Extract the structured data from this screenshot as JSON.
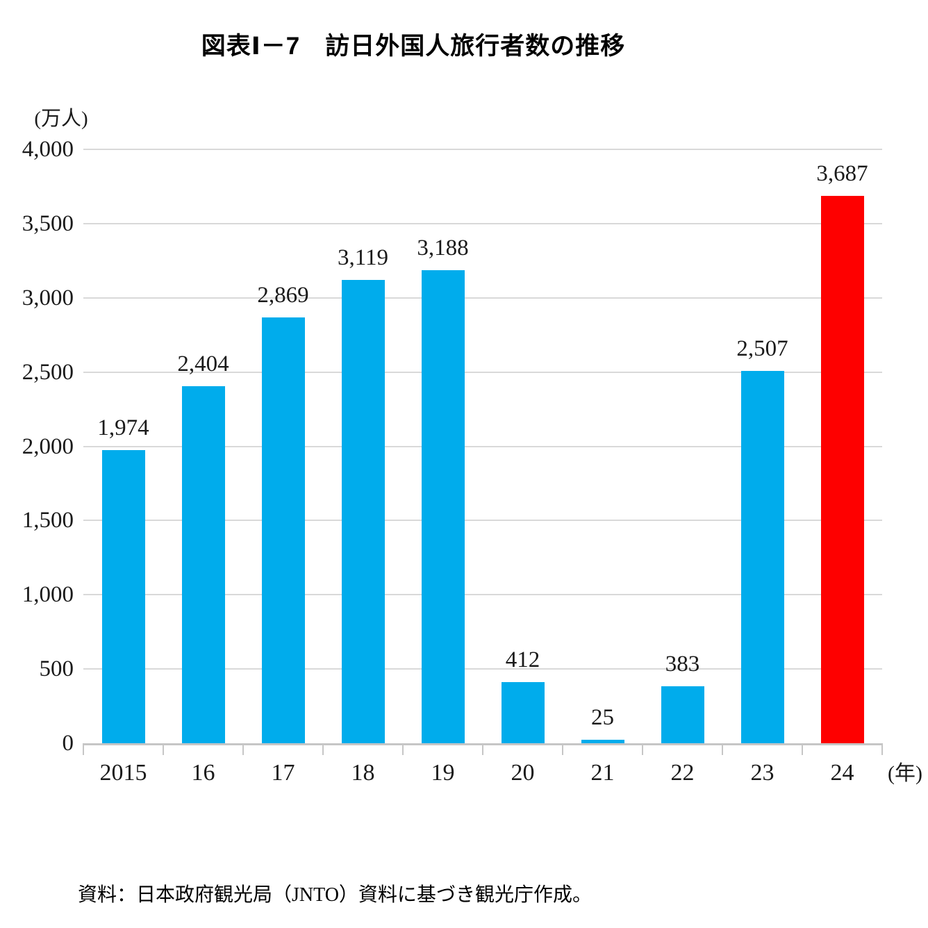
{
  "title": "図表Ⅰ－7　訪日外国人旅行者数の推移",
  "axis": {
    "unit_label": "(万人)",
    "year_suffix": "(年)"
  },
  "source_note": "資料：日本政府観光局（JNTO）資料に基づき観光庁作成。",
  "chart_data": {
    "type": "bar",
    "title": "訪日外国人旅行者数の推移",
    "categories": [
      "2015",
      "16",
      "17",
      "18",
      "19",
      "20",
      "21",
      "22",
      "23",
      "24"
    ],
    "values": [
      1974,
      2404,
      2869,
      3119,
      3188,
      412,
      25,
      383,
      2507,
      3687
    ],
    "value_labels": [
      "1,974",
      "2,404",
      "2,869",
      "3,119",
      "3,188",
      "412",
      "25",
      "383",
      "2,507",
      "3,687"
    ],
    "highlight_index": 9,
    "ylabel": "(万人)",
    "xlabel": "(年)",
    "ylim": [
      0,
      4000
    ],
    "ytick_step": 500,
    "ytick_labels": [
      "0",
      "500",
      "1,000",
      "1,500",
      "2,000",
      "2,500",
      "3,000",
      "3,500",
      "4,000"
    ],
    "grid": true,
    "legend": "none",
    "colors": {
      "bar": "#00ACEC",
      "highlight": "#FE0000",
      "grid": "#D9D9D9",
      "axis": "#C6C6C6",
      "text": "#1A1A1A"
    }
  }
}
